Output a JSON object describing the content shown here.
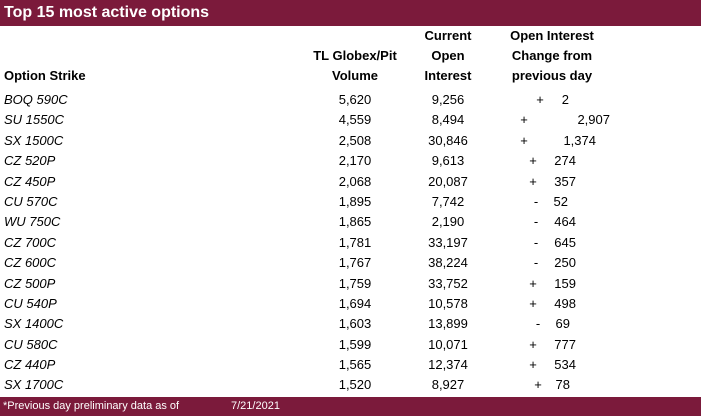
{
  "title": "Top 15 most active options",
  "headers": {
    "strike": "Option Strike",
    "volume": [
      "TL Globex/Pit",
      "Volume"
    ],
    "open_interest": [
      "Current",
      "Open",
      "Interest"
    ],
    "change": [
      "Open Interest",
      "Change from",
      "previous day"
    ]
  },
  "rows": [
    {
      "strike": "BOQ 590C",
      "volume": "5,620",
      "oi": "9,256",
      "sign": "+",
      "change": "2"
    },
    {
      "strike": "SU 1550C",
      "volume": "4,559",
      "oi": "8,494",
      "sign": "+",
      "change": "2,907"
    },
    {
      "strike": "SX 1500C",
      "volume": "2,508",
      "oi": "30,846",
      "sign": "+",
      "change": "1,374"
    },
    {
      "strike": "CZ 520P",
      "volume": "2,170",
      "oi": "9,613",
      "sign": "+",
      "change": "274"
    },
    {
      "strike": "CZ 450P",
      "volume": "2,068",
      "oi": "20,087",
      "sign": "+",
      "change": "357"
    },
    {
      "strike": "CU 570C",
      "volume": "1,895",
      "oi": "7,742",
      "sign": "-",
      "change": "52"
    },
    {
      "strike": "WU 750C",
      "volume": "1,865",
      "oi": "2,190",
      "sign": "-",
      "change": "464"
    },
    {
      "strike": "CZ 700C",
      "volume": "1,781",
      "oi": "33,197",
      "sign": "-",
      "change": "645"
    },
    {
      "strike": "CZ 600C",
      "volume": "1,767",
      "oi": "38,224",
      "sign": "-",
      "change": "250"
    },
    {
      "strike": "CZ 500P",
      "volume": "1,759",
      "oi": "33,752",
      "sign": "+",
      "change": "159"
    },
    {
      "strike": "CU 540P",
      "volume": "1,694",
      "oi": "10,578",
      "sign": "+",
      "change": "498"
    },
    {
      "strike": "SX 1400C",
      "volume": "1,603",
      "oi": "13,899",
      "sign": "-",
      "change": "69"
    },
    {
      "strike": "CU 580C",
      "volume": "1,599",
      "oi": "10,071",
      "sign": "+",
      "change": "777"
    },
    {
      "strike": "CZ 440P",
      "volume": "1,565",
      "oi": "12,374",
      "sign": "+",
      "change": "534"
    },
    {
      "strike": "SX 1700C",
      "volume": "1,520",
      "oi": "8,927",
      "sign": "+",
      "change": "78"
    }
  ],
  "footer": {
    "note": "*Previous day preliminary data as of",
    "date": "7/21/2021"
  },
  "colors": {
    "accent": "#7b1a3b"
  }
}
